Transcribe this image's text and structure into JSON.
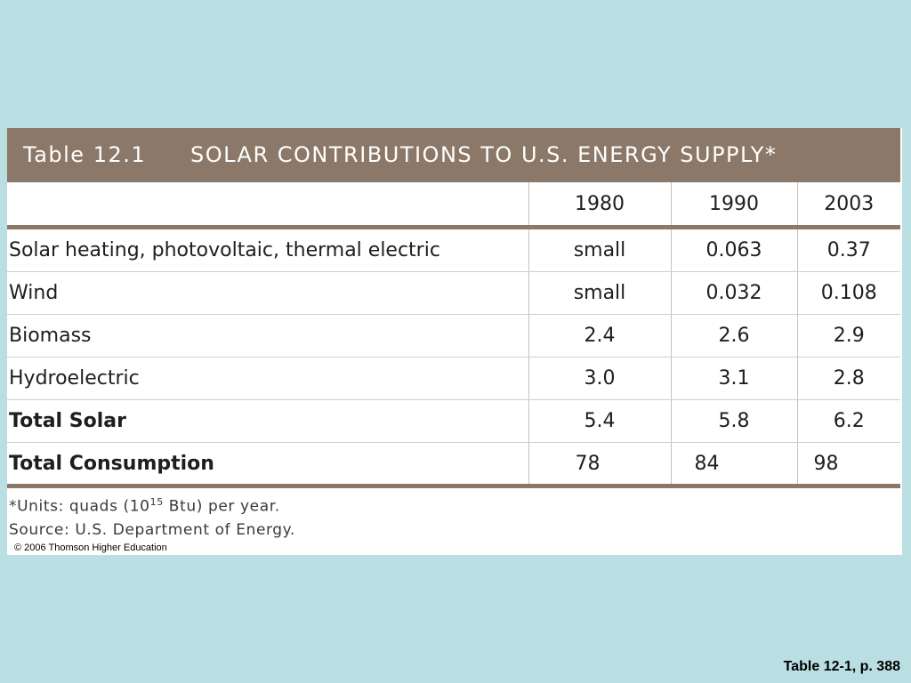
{
  "table": {
    "label": "Table 12.1",
    "title": "SOLAR CONTRIBUTIONS TO U.S. ENERGY SUPPLY*",
    "columns": [
      "1980",
      "1990",
      "2003"
    ],
    "rows": [
      {
        "label": "Solar heating, photovoltaic, thermal electric",
        "values": [
          "small",
          "0.063",
          "0.37"
        ]
      },
      {
        "label": "Wind",
        "values": [
          "small",
          "0.032",
          "0.108"
        ]
      },
      {
        "label": "Biomass",
        "values": [
          "2.4",
          "2.6",
          "2.9"
        ]
      },
      {
        "label": "Hydroelectric",
        "values": [
          "3.0",
          "3.1",
          "2.8"
        ]
      },
      {
        "label": "Total Solar",
        "values": [
          "5.4",
          "5.8",
          "6.2"
        ]
      },
      {
        "label": "Total Consumption",
        "values": [
          "78",
          "84",
          "98"
        ]
      }
    ]
  },
  "notes": {
    "units_prefix": "*Units: quads (10",
    "units_exponent": "15",
    "units_suffix": " Btu) per year.",
    "source": "Source: U.S. Department of Energy.",
    "copyright": "© 2006 Thomson Higher Education"
  },
  "caption": "Table 12-1, p. 388",
  "colors": {
    "background": "#b9dfe3",
    "header_brown": "#8b7868"
  }
}
